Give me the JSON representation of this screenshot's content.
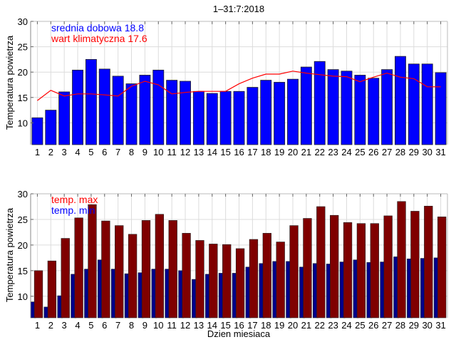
{
  "chart_data": [
    {
      "type": "bar",
      "title": "1–31:7:2018",
      "xlabel": "",
      "ylabel": "Temperatura powietrza",
      "ylim": [
        5.7,
        30
      ],
      "yticks": [
        10,
        15,
        20,
        25,
        30
      ],
      "grid": true,
      "categories": [
        "1",
        "2",
        "3",
        "4",
        "5",
        "6",
        "7",
        "8",
        "9",
        "10",
        "11",
        "12",
        "13",
        "14",
        "15",
        "16",
        "17",
        "18",
        "19",
        "20",
        "21",
        "22",
        "23",
        "24",
        "25",
        "26",
        "27",
        "28",
        "29",
        "30",
        "31"
      ],
      "series": [
        {
          "name": "srednia dobowa",
          "kind": "bar",
          "color": "#0000ff",
          "values": [
            11.0,
            12.5,
            16.1,
            20.4,
            22.5,
            20.6,
            19.2,
            17.7,
            19.4,
            20.4,
            18.4,
            18.2,
            16.2,
            15.8,
            16.2,
            16.2,
            17.0,
            18.4,
            18.0,
            18.6,
            21.0,
            22.1,
            20.5,
            20.2,
            19.4,
            18.8,
            20.5,
            23.1,
            21.6,
            21.6,
            19.9
          ]
        },
        {
          "name": "wart klimatyczna",
          "kind": "line",
          "color": "#ff0000",
          "values": [
            14.4,
            16.4,
            15.3,
            15.7,
            15.7,
            15.5,
            15.3,
            17.2,
            18.2,
            17.5,
            15.7,
            16.0,
            16.2,
            16.2,
            16.2,
            17.7,
            18.8,
            19.6,
            19.6,
            20.2,
            19.8,
            19.5,
            19.2,
            19.1,
            18.1,
            19.0,
            19.8,
            19.0,
            18.7,
            17.1,
            17.1
          ]
        }
      ],
      "legend": [
        {
          "text": "srednia dobowa 18.8",
          "color": "#0000ff"
        },
        {
          "text": "wart klimatyczna 17.6",
          "color": "#ff0000"
        }
      ],
      "legend_position": "top-left"
    },
    {
      "type": "bar",
      "title": "",
      "xlabel": "Dzien miesiaca",
      "ylabel": "Temperatura powietrza",
      "ylim": [
        5.8,
        30
      ],
      "yticks": [
        10,
        15,
        20,
        25,
        30
      ],
      "grid": true,
      "categories": [
        "1",
        "2",
        "3",
        "4",
        "5",
        "6",
        "7",
        "8",
        "9",
        "10",
        "11",
        "12",
        "13",
        "14",
        "15",
        "16",
        "17",
        "18",
        "19",
        "20",
        "21",
        "22",
        "23",
        "24",
        "25",
        "26",
        "27",
        "28",
        "29",
        "30",
        "31"
      ],
      "series": [
        {
          "name": "temp. min",
          "kind": "bar",
          "color": "#00008b",
          "values": [
            8.9,
            7.9,
            10.1,
            14.3,
            15.3,
            17.1,
            15.3,
            14.4,
            14.6,
            15.3,
            15.3,
            15.0,
            13.3,
            14.3,
            14.5,
            14.5,
            15.7,
            16.4,
            16.8,
            16.8,
            15.7,
            16.4,
            16.3,
            16.7,
            17.1,
            16.6,
            16.7,
            17.7,
            17.3,
            17.4,
            17.5
          ]
        },
        {
          "name": "temp. max",
          "kind": "bar",
          "color": "#7f0000",
          "values": [
            15.0,
            16.9,
            21.3,
            25.3,
            27.9,
            24.7,
            23.8,
            22.1,
            24.8,
            26.0,
            24.8,
            22.3,
            20.9,
            20.2,
            20.1,
            19.3,
            21.1,
            22.3,
            20.6,
            23.8,
            25.2,
            27.5,
            25.8,
            24.4,
            24.2,
            24.2,
            25.7,
            28.5,
            26.6,
            27.6,
            25.5
          ]
        }
      ],
      "legend": [
        {
          "text": "temp. max",
          "color": "#ff0000"
        },
        {
          "text": "temp. min",
          "color": "#0000ff"
        }
      ],
      "legend_position": "top-left"
    }
  ]
}
